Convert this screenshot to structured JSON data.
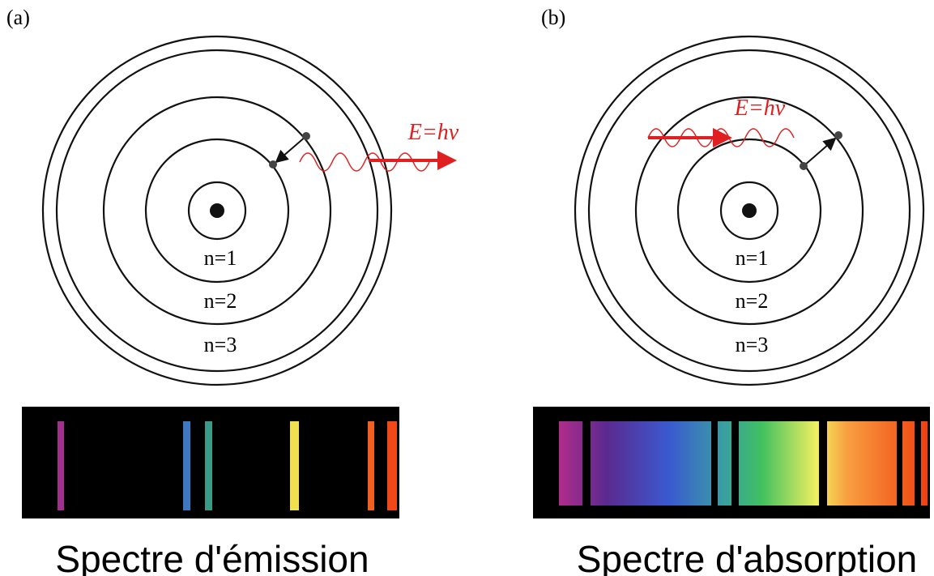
{
  "panels": [
    {
      "label": "(a)",
      "levels": [
        "n=1",
        "n=2",
        "n=3"
      ],
      "energy": "E=hν",
      "caption": "Spectre d'émission"
    },
    {
      "label": "(b)",
      "levels": [
        "n=1",
        "n=2",
        "n=3"
      ],
      "energy": "E=hν",
      "caption": "Spectre d'absorption"
    }
  ]
}
